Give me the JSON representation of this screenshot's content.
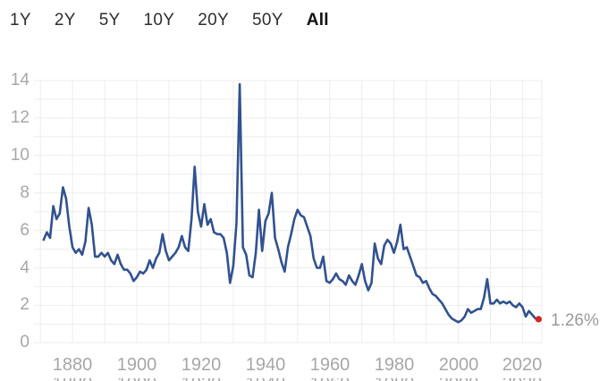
{
  "tabs": [
    {
      "label": "1Y",
      "active": false
    },
    {
      "label": "2Y",
      "active": false
    },
    {
      "label": "5Y",
      "active": false
    },
    {
      "label": "10Y",
      "active": false
    },
    {
      "label": "20Y",
      "active": false
    },
    {
      "label": "50Y",
      "active": false
    },
    {
      "label": "All",
      "active": true
    }
  ],
  "chart_data": {
    "type": "line",
    "title": "",
    "x_start_year": 1871,
    "x_end_year": 2025,
    "x_step_years": 1,
    "values": [
      5.5,
      5.9,
      5.6,
      7.3,
      6.6,
      6.9,
      8.3,
      7.7,
      6.2,
      5.1,
      4.8,
      5.0,
      4.7,
      5.4,
      7.2,
      6.3,
      4.6,
      4.6,
      4.8,
      4.6,
      4.8,
      4.4,
      4.2,
      4.7,
      4.2,
      3.9,
      3.9,
      3.7,
      3.3,
      3.5,
      3.8,
      3.7,
      3.9,
      4.4,
      4.0,
      4.5,
      4.8,
      5.8,
      4.9,
      4.4,
      4.6,
      4.8,
      5.1,
      5.7,
      5.1,
      4.9,
      6.6,
      9.4,
      7.0,
      6.2,
      7.4,
      6.3,
      6.6,
      5.9,
      5.8,
      5.8,
      5.6,
      4.8,
      3.2,
      4.1,
      6.4,
      13.8,
      5.1,
      4.7,
      3.6,
      3.5,
      4.8,
      7.1,
      4.9,
      6.5,
      6.9,
      8.0,
      5.6,
      5.0,
      4.3,
      3.8,
      5.1,
      5.8,
      6.6,
      7.1,
      6.8,
      6.7,
      6.2,
      5.7,
      4.5,
      4.0,
      4.0,
      4.6,
      3.3,
      3.2,
      3.4,
      3.7,
      3.4,
      3.3,
      3.1,
      3.6,
      3.3,
      3.1,
      3.6,
      4.2,
      3.3,
      2.8,
      3.2,
      5.3,
      4.5,
      4.2,
      5.2,
      5.5,
      5.3,
      4.8,
      5.4,
      6.3,
      5.0,
      5.1,
      4.6,
      4.1,
      3.6,
      3.5,
      3.2,
      3.3,
      2.9,
      2.6,
      2.5,
      2.3,
      2.1,
      1.8,
      1.5,
      1.3,
      1.2,
      1.1,
      1.2,
      1.4,
      1.8,
      1.6,
      1.7,
      1.8,
      1.8,
      2.4,
      3.4,
      2.1,
      2.1,
      2.3,
      2.1,
      2.2,
      2.1,
      2.2,
      2.0,
      1.9,
      2.1,
      1.9,
      1.4,
      1.7,
      1.5,
      1.3,
      1.26
    ],
    "end_point": {
      "year": 2025,
      "value": 1.26
    },
    "end_label": "1.26%",
    "xticks": [
      1880,
      1900,
      1920,
      1940,
      1960,
      1980,
      2000,
      2020
    ],
    "yticks": [
      0,
      2,
      4,
      6,
      8,
      10,
      12,
      14
    ],
    "xlim": [
      1868,
      2026
    ],
    "ylim": [
      0,
      14
    ],
    "xgrid": {
      "start": 1870,
      "end": 2020,
      "step": 10
    },
    "ygrid_step": 1,
    "grid": true,
    "legend": "none",
    "colors": {
      "line": "#31528f",
      "dot": "#d42525",
      "grid": "#ededed",
      "axis_text": "#a7a7a7",
      "tab_text": "#2e2e2e",
      "tab_active_text": "#101010",
      "end_label_text": "#9a9a9a",
      "background": "#ffffff"
    }
  }
}
